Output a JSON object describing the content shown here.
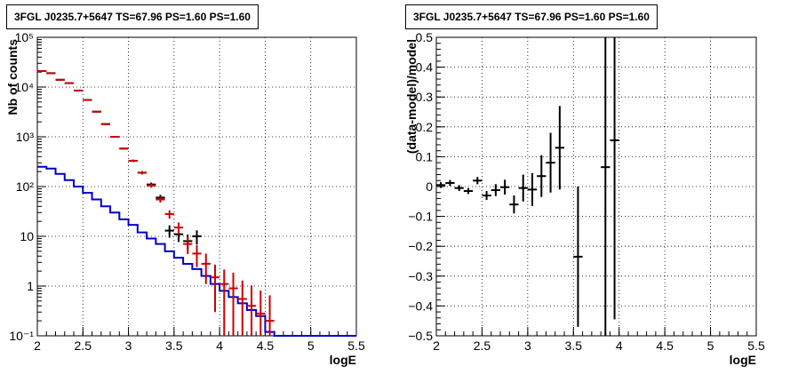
{
  "chart_data": [
    {
      "type": "step-histogram-with-errorbars",
      "title": "3FGL J0235.7+5647 TS=67.96 PS=1.60 PS=1.60",
      "xlabel": "logE",
      "ylabel": "Nb of counts",
      "xlim": [
        2,
        5.5
      ],
      "ylim": [
        0.1,
        100000
      ],
      "yscale": "log",
      "grid": true,
      "x_ticks": [
        "2",
        "2.5",
        "3",
        "3.5",
        "4",
        "4.5",
        "5",
        "5.5"
      ],
      "y_ticks": [
        "10⁻¹",
        "1",
        "10",
        "10²",
        "10³",
        "10⁴",
        "10⁵"
      ],
      "series": [
        {
          "color": "#0000cc",
          "style": "step",
          "bin_edges": [
            2.0,
            2.1,
            2.2,
            2.3,
            2.4,
            2.5,
            2.6,
            2.7,
            2.8,
            2.9,
            3.0,
            3.1,
            3.2,
            3.3,
            3.4,
            3.5,
            3.6,
            3.7,
            3.8,
            3.9,
            4.0,
            4.1,
            4.2,
            4.3,
            4.4,
            4.5,
            4.6,
            4.7,
            4.8,
            4.9,
            5.0,
            5.1,
            5.2,
            5.3,
            5.4,
            5.5
          ],
          "values": [
            250,
            230,
            180,
            135,
            100,
            75,
            55,
            40,
            30,
            22,
            17,
            12,
            9,
            7,
            5,
            3.7,
            2.8,
            2.2,
            1.6,
            1.1,
            0.8,
            0.6,
            0.45,
            0.33,
            0.25,
            0.12,
            0.1,
            0.1,
            0.1,
            0.1,
            0.1,
            0.1,
            0.1,
            0.1,
            0.1
          ]
        },
        {
          "color": "#000000",
          "style": "errorbar",
          "x": [
            2.05,
            2.15,
            2.25,
            2.35,
            2.45,
            2.55,
            2.65,
            2.75,
            2.85,
            2.95,
            3.05,
            3.15,
            3.25,
            3.35,
            3.45,
            3.55,
            3.65,
            3.75
          ],
          "y": [
            21000,
            19000,
            14000,
            12000,
            8500,
            5500,
            3200,
            1800,
            1000,
            580,
            330,
            190,
            110,
            60,
            13,
            11,
            8,
            10
          ],
          "yerr": [
            140,
            140,
            120,
            110,
            90,
            75,
            55,
            42,
            32,
            24,
            18,
            14,
            10,
            8,
            3.6,
            3.3,
            2.8,
            3.2
          ]
        },
        {
          "color": "#cc0000",
          "style": "errorbar",
          "x": [
            2.05,
            2.15,
            2.25,
            2.35,
            2.45,
            2.55,
            2.65,
            2.75,
            2.85,
            2.95,
            3.05,
            3.15,
            3.25,
            3.35,
            3.45,
            3.55,
            3.65,
            3.75,
            3.85,
            3.95,
            4.05,
            4.15,
            4.25,
            4.35,
            4.45,
            4.55
          ],
          "y": [
            21000,
            19000,
            14000,
            12000,
            8500,
            5500,
            3200,
            1800,
            1000,
            580,
            330,
            190,
            105,
            55,
            28,
            15,
            7,
            4.5,
            2.8,
            1.5,
            1.1,
            0.9,
            0.55,
            0.4,
            0.28,
            0.2
          ],
          "yerr": [
            140,
            140,
            120,
            110,
            90,
            75,
            55,
            42,
            32,
            24,
            18,
            14,
            10,
            7.4,
            5.3,
            3.9,
            2.6,
            2.1,
            1.7,
            1.2,
            1.05,
            0.95,
            0.74,
            0.63,
            0.53,
            0.45
          ]
        }
      ]
    },
    {
      "type": "scatter-with-errorbars",
      "title": "3FGL J0235.7+5647 TS=67.96 PS=1.60 PS=1.60",
      "xlabel": "logE",
      "ylabel": "(data-model)/model",
      "xlim": [
        2,
        5.5
      ],
      "ylim": [
        -0.5,
        0.5
      ],
      "grid": true,
      "x_ticks": [
        "2",
        "2.5",
        "3",
        "3.5",
        "4",
        "4.5",
        "5",
        "5.5"
      ],
      "y_ticks": [
        "−0.5",
        "−0.4",
        "−0.3",
        "−0.2",
        "−0.1",
        "0",
        "0.1",
        "0.2",
        "0.3",
        "0.4",
        "0.5"
      ],
      "series": [
        {
          "color": "#000000",
          "x": [
            2.05,
            2.15,
            2.25,
            2.35,
            2.45,
            2.55,
            2.65,
            2.75,
            2.85,
            2.95,
            3.05,
            3.15,
            3.25,
            3.35,
            3.55,
            3.85,
            3.95
          ],
          "y": [
            0.005,
            0.012,
            -0.005,
            -0.015,
            0.02,
            -0.03,
            -0.012,
            -0.002,
            -0.06,
            -0.005,
            -0.01,
            0.035,
            0.08,
            0.13,
            -0.235,
            0.065,
            0.155
          ],
          "yerr": [
            0.01,
            0.01,
            0.01,
            0.01,
            0.012,
            0.015,
            0.02,
            0.025,
            0.03,
            0.045,
            0.055,
            0.07,
            0.1,
            0.14,
            0.235,
            0.6,
            0.6
          ]
        }
      ]
    }
  ]
}
